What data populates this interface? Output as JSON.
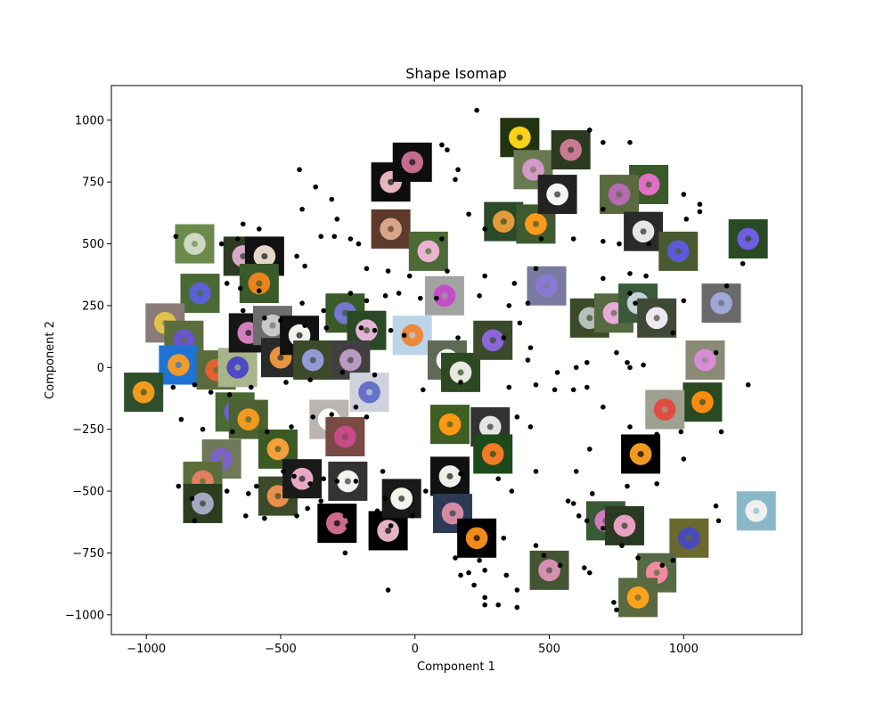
{
  "chart_data": {
    "type": "scatter",
    "title": "Shape Isomap",
    "xlabel": "Component 1",
    "ylabel": "Component 2",
    "xlim": [
      -1130,
      1440
    ],
    "ylim": [
      -1080,
      1140
    ],
    "xticks": [
      -1000,
      -500,
      0,
      500,
      1000
    ],
    "yticks": [
      -1000,
      -750,
      -500,
      -250,
      0,
      250,
      500,
      750,
      1000
    ],
    "grid": false,
    "point_color": "#000000",
    "points": [
      [
        230,
        1040
      ],
      [
        100,
        900
      ],
      [
        120,
        880
      ],
      [
        650,
        960
      ],
      [
        700,
        910
      ],
      [
        800,
        910
      ],
      [
        -430,
        800
      ],
      [
        160,
        800
      ],
      [
        150,
        760
      ],
      [
        -370,
        730
      ],
      [
        -310,
        680
      ],
      [
        700,
        640
      ],
      [
        1000,
        700
      ],
      [
        1060,
        660
      ],
      [
        1060,
        630
      ],
      [
        1010,
        600
      ],
      [
        -420,
        640
      ],
      [
        -290,
        600
      ],
      [
        -640,
        580
      ],
      [
        -580,
        560
      ],
      [
        -660,
        520
      ],
      [
        -720,
        500
      ],
      [
        200,
        620
      ],
      [
        260,
        560
      ],
      [
        -890,
        530
      ],
      [
        -350,
        530
      ],
      [
        -300,
        530
      ],
      [
        -240,
        520
      ],
      [
        -210,
        500
      ],
      [
        100,
        520
      ],
      [
        470,
        520
      ],
      [
        590,
        520
      ],
      [
        700,
        510
      ],
      [
        760,
        500
      ],
      [
        870,
        500
      ],
      [
        -440,
        450
      ],
      [
        -410,
        410
      ],
      [
        -180,
        400
      ],
      [
        -100,
        390
      ],
      [
        -20,
        370
      ],
      [
        120,
        390
      ],
      [
        260,
        370
      ],
      [
        370,
        340
      ],
      [
        450,
        400
      ],
      [
        700,
        360
      ],
      [
        800,
        380
      ],
      [
        860,
        370
      ],
      [
        1220,
        420
      ],
      [
        1160,
        330
      ],
      [
        -700,
        340
      ],
      [
        -650,
        320
      ],
      [
        -580,
        310
      ],
      [
        -420,
        260
      ],
      [
        -340,
        230
      ],
      [
        -240,
        300
      ],
      [
        -180,
        270
      ],
      [
        -110,
        290
      ],
      [
        -60,
        300
      ],
      [
        20,
        280
      ],
      [
        80,
        280
      ],
      [
        240,
        290
      ],
      [
        350,
        250
      ],
      [
        390,
        180
      ],
      [
        420,
        260
      ],
      [
        800,
        300
      ],
      [
        820,
        260
      ],
      [
        1000,
        270
      ],
      [
        -640,
        230
      ],
      [
        -560,
        200
      ],
      [
        -500,
        190
      ],
      [
        -410,
        170
      ],
      [
        -330,
        160
      ],
      [
        -200,
        160
      ],
      [
        -150,
        150
      ],
      [
        -90,
        150
      ],
      [
        -40,
        130
      ],
      [
        160,
        120
      ],
      [
        330,
        120
      ],
      [
        430,
        80
      ],
      [
        420,
        30
      ],
      [
        750,
        60
      ],
      [
        790,
        20
      ],
      [
        800,
        0
      ],
      [
        850,
        10
      ],
      [
        960,
        140
      ],
      [
        1120,
        60
      ],
      [
        1240,
        -70
      ],
      [
        -900,
        -80
      ],
      [
        -820,
        -70
      ],
      [
        -760,
        -100
      ],
      [
        -690,
        -110
      ],
      [
        -610,
        -80
      ],
      [
        -480,
        -60
      ],
      [
        -390,
        -50
      ],
      [
        -270,
        -20
      ],
      [
        -150,
        -30
      ],
      [
        30,
        -90
      ],
      [
        170,
        -60
      ],
      [
        350,
        -80
      ],
      [
        450,
        -70
      ],
      [
        520,
        -90
      ],
      [
        590,
        -90
      ],
      [
        640,
        -80
      ],
      [
        530,
        -20
      ],
      [
        600,
        0
      ],
      [
        640,
        20
      ],
      [
        -870,
        -210
      ],
      [
        -790,
        -250
      ],
      [
        -680,
        -260
      ],
      [
        -550,
        -260
      ],
      [
        -460,
        -240
      ],
      [
        -380,
        -200
      ],
      [
        -310,
        -190
      ],
      [
        -220,
        -160
      ],
      [
        -180,
        -200
      ],
      [
        380,
        -200
      ],
      [
        430,
        -240
      ],
      [
        700,
        -160
      ],
      [
        800,
        -240
      ],
      [
        840,
        -290
      ],
      [
        870,
        -300
      ],
      [
        900,
        -270
      ],
      [
        990,
        -260
      ],
      [
        1140,
        -260
      ],
      [
        -880,
        -480
      ],
      [
        -830,
        -530
      ],
      [
        -700,
        -500
      ],
      [
        -620,
        -510
      ],
      [
        -590,
        -480
      ],
      [
        -490,
        -420
      ],
      [
        -450,
        -440
      ],
      [
        -390,
        -470
      ],
      [
        -340,
        -450
      ],
      [
        -290,
        -460
      ],
      [
        -220,
        -460
      ],
      [
        -120,
        -420
      ],
      [
        -110,
        -530
      ],
      [
        40,
        -500
      ],
      [
        170,
        -430
      ],
      [
        310,
        -450
      ],
      [
        360,
        -500
      ],
      [
        450,
        -420
      ],
      [
        600,
        -420
      ],
      [
        650,
        -330
      ],
      [
        660,
        -510
      ],
      [
        790,
        -480
      ],
      [
        900,
        -470
      ],
      [
        1000,
        -370
      ],
      [
        1120,
        -560
      ],
      [
        1130,
        -620
      ],
      [
        -820,
        -620
      ],
      [
        -630,
        -600
      ],
      [
        -560,
        -610
      ],
      [
        -440,
        -600
      ],
      [
        -400,
        -570
      ],
      [
        -350,
        -540
      ],
      [
        -260,
        -600
      ],
      [
        -250,
        -640
      ],
      [
        -140,
        -580
      ],
      [
        -90,
        -640
      ],
      [
        -10,
        -600
      ],
      [
        170,
        -690
      ],
      [
        330,
        -690
      ],
      [
        450,
        -720
      ],
      [
        480,
        -760
      ],
      [
        540,
        -800
      ],
      [
        570,
        -540
      ],
      [
        590,
        -550
      ],
      [
        610,
        -600
      ],
      [
        640,
        -620
      ],
      [
        700,
        -650
      ],
      [
        630,
        -810
      ],
      [
        650,
        -830
      ],
      [
        770,
        -720
      ],
      [
        830,
        -770
      ],
      [
        920,
        -800
      ],
      [
        960,
        -780
      ],
      [
        -260,
        -750
      ],
      [
        150,
        -770
      ],
      [
        240,
        -780
      ],
      [
        260,
        -820
      ],
      [
        340,
        -840
      ],
      [
        200,
        -830
      ],
      [
        170,
        -840
      ],
      [
        220,
        -880
      ],
      [
        380,
        -900
      ],
      [
        260,
        -930
      ],
      [
        260,
        -960
      ],
      [
        310,
        -960
      ],
      [
        380,
        -970
      ],
      [
        740,
        -950
      ],
      [
        750,
        -980
      ],
      [
        -100,
        -900
      ]
    ],
    "images": [
      [
        -820,
        500,
        "#6b8b4e",
        "#cfd8c0"
      ],
      [
        -640,
        450,
        "#2d3b24",
        "#d9a9c8"
      ],
      [
        -560,
        450,
        "#111111",
        "#e5d8c8"
      ],
      [
        -580,
        340,
        "#3b5a2a",
        "#e9831b"
      ],
      [
        -800,
        300,
        "#4a6a35",
        "#5b62d8"
      ],
      [
        -930,
        180,
        "#8a7b78",
        "#e1c24a"
      ],
      [
        -860,
        110,
        "#5a6e3e",
        "#6a55cf"
      ],
      [
        -880,
        10,
        "#1e73d4",
        "#f09b2a"
      ],
      [
        -1010,
        -100,
        "#2f4f2b",
        "#f29a1c"
      ],
      [
        -740,
        -10,
        "#5b6b3b",
        "#e2622f"
      ],
      [
        -660,
        0,
        "#a8b58a",
        "#4c4ac4"
      ],
      [
        -620,
        140,
        "#161616",
        "#d27fc0"
      ],
      [
        -530,
        170,
        "#6d6d6d",
        "#c8c8c8"
      ],
      [
        -500,
        40,
        "#2a2a2a",
        "#e8943e"
      ],
      [
        -430,
        130,
        "#111111",
        "#f2f2ee"
      ],
      [
        -380,
        30,
        "#3c4a2a",
        "#9498d6"
      ],
      [
        -260,
        220,
        "#3b5a2a",
        "#7477d0"
      ],
      [
        -180,
        150,
        "#2a4a25",
        "#e6b3d5"
      ],
      [
        -240,
        30,
        "#404040",
        "#b99ac0"
      ],
      [
        -170,
        -100,
        "#cfd2dc",
        "#6672c8"
      ],
      [
        -320,
        -210,
        "#b9b5b0",
        "#ffffff"
      ],
      [
        -260,
        -280,
        "#7a4a45",
        "#c84b8a"
      ],
      [
        -670,
        -180,
        "#4a6a35",
        "#6e60cf"
      ],
      [
        -620,
        -210,
        "#4b6132",
        "#f09a20"
      ],
      [
        -510,
        -330,
        "#3c5a25",
        "#f3a03a"
      ],
      [
        -720,
        -370,
        "#6e7a5a",
        "#7c63c9"
      ],
      [
        -790,
        -460,
        "#5b6e3b",
        "#e28060"
      ],
      [
        -790,
        -550,
        "#2b3f1f",
        "#a4a8c4"
      ],
      [
        -510,
        -520,
        "#3e4b2b",
        "#e98e4c"
      ],
      [
        -420,
        -450,
        "#1a1a1a",
        "#e6aac8"
      ],
      [
        -250,
        -460,
        "#333333",
        "#f3f3ef"
      ],
      [
        -290,
        -630,
        "#000000",
        "#cc6b8e"
      ],
      [
        -100,
        -660,
        "#000000",
        "#e2b3c2"
      ],
      [
        -50,
        -530,
        "#1a1a1a",
        "#f3f3ee"
      ],
      [
        -90,
        750,
        "#0d0d0d",
        "#e6b5c0"
      ],
      [
        -10,
        830,
        "#0d0d0d",
        "#c46c8e"
      ],
      [
        -90,
        560,
        "#5e3a2a",
        "#d9a58a"
      ],
      [
        50,
        470,
        "#4b6a35",
        "#e8b4cf"
      ],
      [
        -10,
        130,
        "#bcd4e8",
        "#e9893c"
      ],
      [
        110,
        290,
        "#a3a3a3",
        "#c24fc6"
      ],
      [
        120,
        30,
        "#5e6a55",
        "#f3f3f3"
      ],
      [
        170,
        -20,
        "#2b4a22",
        "#e9e9e2"
      ],
      [
        130,
        -230,
        "#3e5e22",
        "#ff9a10"
      ],
      [
        280,
        -240,
        "#333333",
        "#e3e4e6"
      ],
      [
        290,
        -350,
        "#1d4a1a",
        "#f07a28"
      ],
      [
        130,
        -440,
        "#111111",
        "#f0f0ea"
      ],
      [
        140,
        -590,
        "#2b3b55",
        "#d48ba2"
      ],
      [
        230,
        -690,
        "#000000",
        "#f08a18"
      ],
      [
        290,
        110,
        "#3a4a2a",
        "#8a66d8"
      ],
      [
        330,
        590,
        "#2a4a2a",
        "#e39a3a"
      ],
      [
        450,
        580,
        "#405a30",
        "#ff9a1c"
      ],
      [
        390,
        930,
        "#223311",
        "#ffd21a"
      ],
      [
        440,
        800,
        "#6a7a50",
        "#d399c8"
      ],
      [
        530,
        700,
        "#222222",
        "#f5f5f5"
      ],
      [
        580,
        880,
        "#2c3a1f",
        "#c87a95"
      ],
      [
        490,
        330,
        "#7a7aa0",
        "#8a7ad6"
      ],
      [
        650,
        200,
        "#3c4a2a",
        "#b8bfb8"
      ],
      [
        740,
        220,
        "#556a40",
        "#e7a9d8"
      ],
      [
        830,
        260,
        "#3a5a3a",
        "#c8d0d8"
      ],
      [
        900,
        200,
        "#3e4a35",
        "#f0e8f0"
      ],
      [
        870,
        740,
        "#3b5a2a",
        "#e06fc3"
      ],
      [
        760,
        700,
        "#5a6a40",
        "#b66ab0"
      ],
      [
        850,
        550,
        "#2a2a2a",
        "#e6e6e6"
      ],
      [
        980,
        470,
        "#4a5a30",
        "#5c5ad8"
      ],
      [
        1140,
        260,
        "#6a6a6a",
        "#a1a8d8"
      ],
      [
        1240,
        520,
        "#2a4a25",
        "#6e5ee0"
      ],
      [
        1080,
        30,
        "#8a8a75",
        "#d78cd6"
      ],
      [
        1070,
        -140,
        "#2a4a22",
        "#ff8a10"
      ],
      [
        930,
        -170,
        "#a0a090",
        "#e04c40"
      ],
      [
        840,
        -350,
        "#000000",
        "#f29a20"
      ],
      [
        710,
        -620,
        "#3a5a35",
        "#d47bbd"
      ],
      [
        780,
        -640,
        "#2a3a22",
        "#e6a0c0"
      ],
      [
        1020,
        -690,
        "#6a6a30",
        "#4a4ab8"
      ],
      [
        900,
        -830,
        "#556a45",
        "#f48aa0"
      ],
      [
        830,
        -930,
        "#5a6a40",
        "#ffa21c"
      ],
      [
        1270,
        -580,
        "#8ab8c8",
        "#f0f0f0"
      ],
      [
        500,
        -820,
        "#445533",
        "#d68fb0"
      ]
    ]
  }
}
